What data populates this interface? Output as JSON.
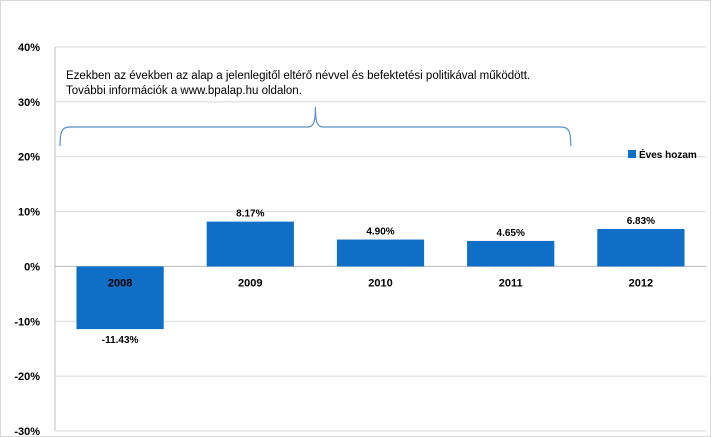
{
  "chart_data": {
    "type": "bar",
    "categories": [
      "2008",
      "2009",
      "2010",
      "2011",
      "2012"
    ],
    "series": [
      {
        "name": "Éves hozam",
        "values": [
          -11.43,
          8.17,
          4.9,
          4.65,
          6.83
        ]
      }
    ],
    "value_labels": [
      "-11.43%",
      "8.17%",
      "4.90%",
      "4.65%",
      "6.83%"
    ],
    "ylim": [
      -30,
      40
    ],
    "yticks": [
      -30,
      -20,
      -10,
      0,
      10,
      20,
      30,
      40
    ],
    "ytick_labels": [
      "-30%",
      "-20%",
      "-10%",
      "0%",
      "10%",
      "20%",
      "30%",
      "40%"
    ],
    "grid": true,
    "legend_position": "right",
    "bar_color": "#0F6FC6",
    "annotation": {
      "lines": [
        "Ezekben az években az alap a jelenlegitől eltérő névvel és befektetési politikával működött.",
        "További információk a www.bpalap.hu oldalon."
      ],
      "bracket_range": [
        "2008",
        "2011"
      ]
    }
  }
}
